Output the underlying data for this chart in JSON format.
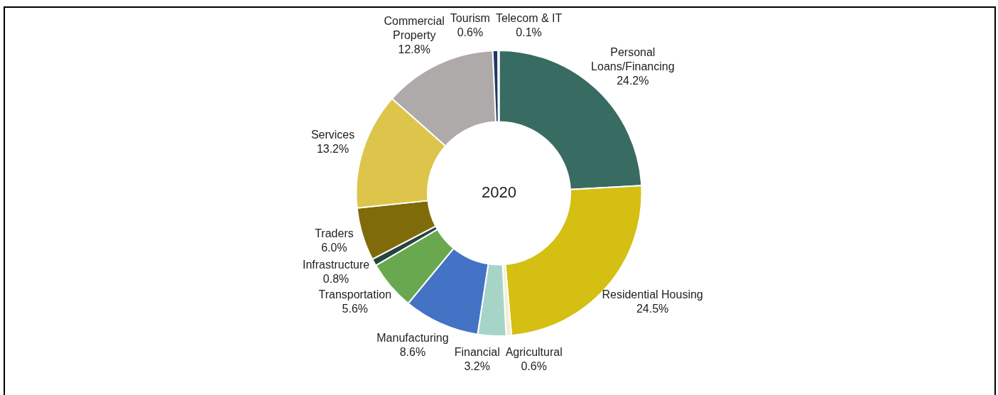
{
  "chart_data": {
    "type": "donut",
    "title": "2020",
    "categories": [
      "Personal Loans/Financing",
      "Residential Housing",
      "Agricultural",
      "Financial",
      "Manufacturing",
      "Transportation",
      "Infrastructure",
      "Traders",
      "Services",
      "Commercial Property",
      "Tourism",
      "Telecom & IT"
    ],
    "values": [
      24.2,
      24.5,
      0.6,
      3.2,
      8.6,
      5.6,
      0.8,
      6.0,
      13.2,
      12.8,
      0.6,
      0.1
    ],
    "value_labels": [
      "24.2%",
      "24.5%",
      "0.6%",
      "3.2%",
      "8.6%",
      "5.6%",
      "0.8%",
      "6.0%",
      "13.2%",
      "12.8%",
      "0.6%",
      "0.1%"
    ],
    "colors": [
      "#386b62",
      "#d4bf12",
      "#f3eed2",
      "#a6d5c8",
      "#4472c4",
      "#6aa84f",
      "#27453f",
      "#7f6b0a",
      "#dcc54a",
      "#aeaaa9",
      "#1f3864",
      "#4472c4"
    ],
    "legend": false
  }
}
